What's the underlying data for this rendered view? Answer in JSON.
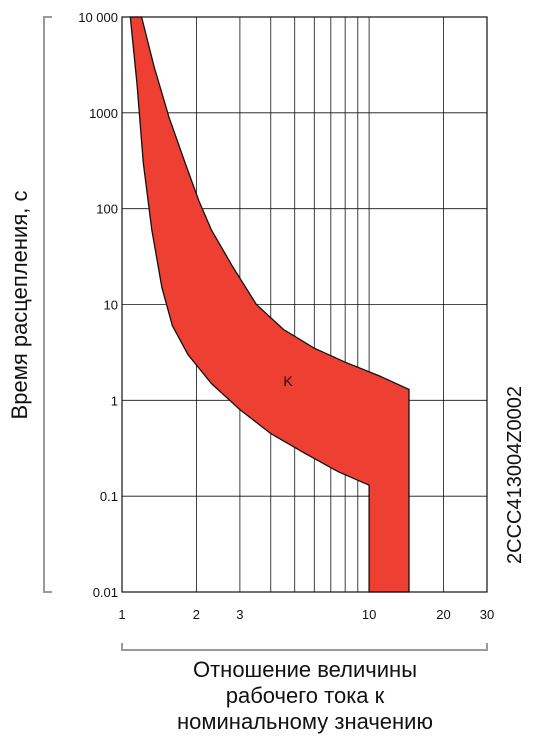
{
  "chart_data": {
    "type": "area",
    "x_scale": "log",
    "y_scale": "log",
    "xlim": [
      1,
      30
    ],
    "ylim": [
      0.01,
      10000
    ],
    "grid": true,
    "x_ticks": [
      {
        "value": 1,
        "label": "1"
      },
      {
        "value": 2,
        "label": "2"
      },
      {
        "value": 3,
        "label": "3"
      },
      {
        "value": 10,
        "label": "10"
      },
      {
        "value": 20,
        "label": "20"
      },
      {
        "value": 30,
        "label": "30"
      }
    ],
    "y_ticks": [
      {
        "value": 0.01,
        "label": "0.01"
      },
      {
        "value": 0.1,
        "label": "0.1"
      },
      {
        "value": 1,
        "label": "1"
      },
      {
        "value": 10,
        "label": "10"
      },
      {
        "value": 100,
        "label": "100"
      },
      {
        "value": 1000,
        "label": "1000"
      },
      {
        "value": 10000,
        "label": "10 000"
      }
    ],
    "x_grid": [
      1,
      2,
      3,
      4,
      5,
      6,
      7,
      8,
      9,
      10,
      20,
      30
    ],
    "y_grid": [
      0.01,
      0.1,
      1,
      10,
      100,
      1000,
      10000
    ],
    "ylabel": "Время расцепления, с",
    "xlabel_lines": [
      "Отношение величины",
      "рабочего тока к",
      "номинальному значению"
    ],
    "band_label": "K",
    "band_color": "#ee3f33",
    "band": {
      "upper": [
        {
          "x": 1.2,
          "y": 10000
        },
        {
          "x": 1.35,
          "y": 3000
        },
        {
          "x": 1.55,
          "y": 900
        },
        {
          "x": 1.8,
          "y": 300
        },
        {
          "x": 2.05,
          "y": 120
        },
        {
          "x": 2.3,
          "y": 60
        },
        {
          "x": 2.8,
          "y": 25
        },
        {
          "x": 3.5,
          "y": 10
        },
        {
          "x": 4.5,
          "y": 5.5
        },
        {
          "x": 6,
          "y": 3.5
        },
        {
          "x": 8,
          "y": 2.5
        },
        {
          "x": 11,
          "y": 1.8
        },
        {
          "x": 14.5,
          "y": 1.3
        },
        {
          "x": 14.5,
          "y": 0.01
        }
      ],
      "lower": [
        {
          "x": 1.08,
          "y": 10000
        },
        {
          "x": 1.15,
          "y": 2000
        },
        {
          "x": 1.22,
          "y": 300
        },
        {
          "x": 1.32,
          "y": 60
        },
        {
          "x": 1.45,
          "y": 15
        },
        {
          "x": 1.6,
          "y": 6
        },
        {
          "x": 1.85,
          "y": 3
        },
        {
          "x": 2.3,
          "y": 1.5
        },
        {
          "x": 3,
          "y": 0.8
        },
        {
          "x": 4,
          "y": 0.45
        },
        {
          "x": 5.5,
          "y": 0.28
        },
        {
          "x": 7.5,
          "y": 0.18
        },
        {
          "x": 10,
          "y": 0.13
        },
        {
          "x": 10,
          "y": 0.01
        }
      ]
    },
    "label_pos": {
      "x": 4.7,
      "y": 1.6
    }
  },
  "code": "2CCC413004Z0002"
}
